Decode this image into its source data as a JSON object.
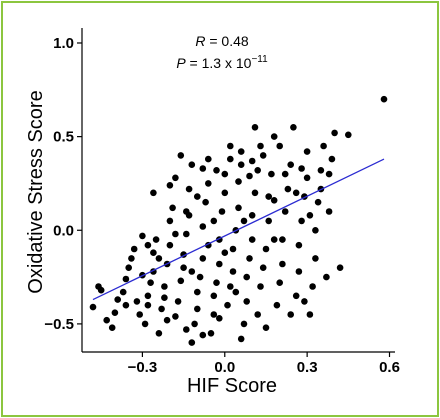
{
  "chart_data": {
    "type": "scatter",
    "title": "",
    "xlabel": "HIF Score",
    "ylabel": "Oxidative Stress Score",
    "xlim": [
      -0.52,
      0.62
    ],
    "ylim": [
      -0.65,
      1.08
    ],
    "xticks": [
      -0.3,
      0.0,
      0.3,
      0.6
    ],
    "xtick_labels": [
      "−0.3",
      "0.0",
      "0.3",
      "0.6"
    ],
    "yticks": [
      -0.5,
      0.0,
      0.5,
      1.0
    ],
    "ytick_labels": [
      "−0.5",
      "0.0",
      "0.5",
      "1.0"
    ],
    "grid": false,
    "legend": "none",
    "colors": {
      "points": "#000000",
      "fit_line": "#2b2bd1",
      "border": "#8cc63f"
    },
    "annotation": {
      "r_symbol": "R",
      "r_value": " = 0.48",
      "p_symbol": "P",
      "p_value": " = 1.3 x 10",
      "p_exponent": "−11"
    },
    "fit_line": {
      "x": [
        -0.48,
        0.58
      ],
      "y": [
        -0.37,
        0.38
      ]
    },
    "points": [
      [
        0.58,
        0.7
      ],
      [
        -0.48,
        -0.41
      ],
      [
        -0.46,
        -0.3
      ],
      [
        -0.45,
        -0.32
      ],
      [
        -0.43,
        -0.48
      ],
      [
        -0.41,
        -0.52
      ],
      [
        -0.4,
        -0.44
      ],
      [
        -0.39,
        -0.37
      ],
      [
        -0.37,
        -0.33
      ],
      [
        -0.36,
        -0.26
      ],
      [
        -0.35,
        -0.2
      ],
      [
        -0.34,
        -0.15
      ],
      [
        -0.33,
        -0.1
      ],
      [
        -0.32,
        -0.38
      ],
      [
        -0.31,
        -0.45
      ],
      [
        -0.3,
        -0.03
      ],
      [
        -0.29,
        -0.5
      ],
      [
        -0.28,
        -0.4
      ],
      [
        -0.28,
        -0.35
      ],
      [
        -0.27,
        -0.28
      ],
      [
        -0.26,
        -0.22
      ],
      [
        -0.26,
        -0.12
      ],
      [
        -0.25,
        -0.05
      ],
      [
        -0.24,
        -0.55
      ],
      [
        -0.23,
        -0.42
      ],
      [
        -0.22,
        -0.36
      ],
      [
        -0.22,
        -0.3
      ],
      [
        -0.21,
        -0.18
      ],
      [
        -0.2,
        -0.08
      ],
      [
        -0.2,
        0.05
      ],
      [
        -0.19,
        0.12
      ],
      [
        -0.18,
        0.28
      ],
      [
        -0.18,
        -0.46
      ],
      [
        -0.17,
        -0.38
      ],
      [
        -0.16,
        -0.27
      ],
      [
        -0.15,
        -0.2
      ],
      [
        -0.15,
        -0.13
      ],
      [
        -0.14,
        -0.02
      ],
      [
        -0.13,
        0.08
      ],
      [
        -0.13,
        0.22
      ],
      [
        -0.12,
        0.35
      ],
      [
        -0.12,
        -0.6
      ],
      [
        -0.11,
        -0.5
      ],
      [
        -0.1,
        -0.42
      ],
      [
        -0.1,
        -0.33
      ],
      [
        -0.09,
        -0.25
      ],
      [
        -0.08,
        -0.15
      ],
      [
        -0.08,
        0.02
      ],
      [
        -0.07,
        0.15
      ],
      [
        -0.06,
        0.25
      ],
      [
        -0.06,
        0.38
      ],
      [
        -0.05,
        -0.55
      ],
      [
        -0.04,
        -0.45
      ],
      [
        -0.04,
        -0.35
      ],
      [
        -0.03,
        -0.28
      ],
      [
        -0.02,
        -0.18
      ],
      [
        -0.02,
        -0.05
      ],
      [
        -0.01,
        0.1
      ],
      [
        0.0,
        0.2
      ],
      [
        0.0,
        0.3
      ],
      [
        0.01,
        -0.4
      ],
      [
        0.02,
        -0.3
      ],
      [
        0.03,
        -0.22
      ],
      [
        0.03,
        -0.1
      ],
      [
        0.04,
        0.0
      ],
      [
        0.05,
        0.12
      ],
      [
        0.05,
        0.26
      ],
      [
        0.06,
        0.35
      ],
      [
        0.07,
        -0.5
      ],
      [
        0.08,
        -0.38
      ],
      [
        0.08,
        -0.25
      ],
      [
        0.09,
        -0.15
      ],
      [
        0.1,
        -0.05
      ],
      [
        0.1,
        0.08
      ],
      [
        0.11,
        0.2
      ],
      [
        0.12,
        0.32
      ],
      [
        0.13,
        0.45
      ],
      [
        0.13,
        -0.3
      ],
      [
        0.14,
        -0.2
      ],
      [
        0.15,
        -0.1
      ],
      [
        0.16,
        0.05
      ],
      [
        0.16,
        0.18
      ],
      [
        0.17,
        0.3
      ],
      [
        0.18,
        0.5
      ],
      [
        0.19,
        -0.4
      ],
      [
        0.2,
        -0.28
      ],
      [
        0.21,
        -0.18
      ],
      [
        0.21,
        -0.05
      ],
      [
        0.22,
        0.1
      ],
      [
        0.23,
        0.22
      ],
      [
        0.24,
        0.35
      ],
      [
        0.25,
        0.55
      ],
      [
        0.26,
        -0.35
      ],
      [
        0.27,
        -0.22
      ],
      [
        0.27,
        -0.08
      ],
      [
        0.28,
        0.05
      ],
      [
        0.29,
        0.18
      ],
      [
        0.3,
        0.28
      ],
      [
        0.3,
        0.42
      ],
      [
        0.31,
        -0.45
      ],
      [
        0.32,
        -0.3
      ],
      [
        0.33,
        -0.15
      ],
      [
        0.33,
        0.0
      ],
      [
        0.34,
        0.15
      ],
      [
        0.35,
        0.32
      ],
      [
        0.36,
        0.45
      ],
      [
        0.37,
        -0.25
      ],
      [
        0.38,
        0.1
      ],
      [
        0.39,
        0.38
      ],
      [
        0.4,
        0.52
      ],
      [
        0.42,
        -0.2
      ],
      [
        0.45,
        0.51
      ],
      [
        -0.16,
        0.4
      ],
      [
        -0.08,
        0.33
      ],
      [
        0.02,
        0.38
      ],
      [
        0.06,
        0.42
      ],
      [
        0.1,
        0.37
      ],
      [
        0.14,
        0.4
      ],
      [
        0.2,
        0.45
      ],
      [
        0.22,
        0.3
      ],
      [
        -0.26,
        0.2
      ],
      [
        -0.2,
        0.24
      ],
      [
        -0.14,
        0.1
      ],
      [
        -0.1,
        0.18
      ],
      [
        -0.04,
        0.05
      ],
      [
        0.0,
        -0.12
      ],
      [
        0.04,
        -0.33
      ],
      [
        -0.06,
        -0.08
      ],
      [
        -0.18,
        -0.02
      ],
      [
        -0.24,
        -0.15
      ],
      [
        -0.3,
        -0.24
      ],
      [
        -0.36,
        -0.4
      ],
      [
        0.09,
        0.29
      ],
      [
        0.18,
        0.16
      ],
      [
        0.26,
        0.2
      ],
      [
        0.31,
        0.08
      ],
      [
        0.35,
        0.22
      ],
      [
        0.38,
        0.3
      ],
      [
        0.29,
        -0.38
      ],
      [
        0.24,
        -0.45
      ],
      [
        0.12,
        -0.45
      ],
      [
        0.15,
        -0.52
      ],
      [
        0.06,
        -0.58
      ],
      [
        -0.02,
        -0.47
      ],
      [
        -0.08,
        -0.56
      ],
      [
        -0.14,
        -0.53
      ],
      [
        -0.21,
        -0.48
      ],
      [
        0.02,
        0.45
      ],
      [
        -0.03,
        0.32
      ],
      [
        0.11,
        0.55
      ],
      [
        0.07,
        0.05
      ],
      [
        -0.12,
        -0.22
      ],
      [
        0.18,
        -0.05
      ],
      [
        -0.28,
        -0.08
      ],
      [
        0.28,
        0.33
      ]
    ]
  }
}
